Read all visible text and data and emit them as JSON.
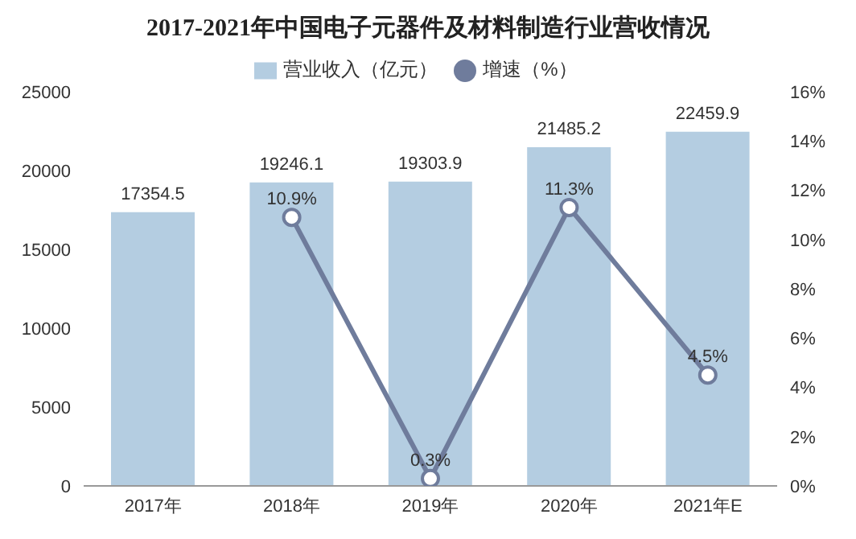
{
  "chart_data": {
    "type": "bar",
    "title": "2017-2021年中国电子元器件及材料制造行业营收情况",
    "categories": [
      "2017年",
      "2018年",
      "2019年",
      "2020年",
      "2021年E"
    ],
    "series": [
      {
        "name": "营业收入（亿元）",
        "color": "#b4cde1",
        "values": [
          17354.5,
          19246.1,
          19303.9,
          21485.2,
          22459.9
        ],
        "value_labels": [
          "17354.5",
          "19246.1",
          "19303.9",
          "21485.2",
          "22459.9"
        ]
      },
      {
        "name": "增速（%）",
        "type": "line",
        "axis": "y2",
        "color": "#6f7c9c",
        "values": [
          null,
          10.9,
          0.3,
          11.3,
          4.5
        ],
        "value_labels": [
          null,
          "10.9%",
          "0.3%",
          "11.3%",
          "4.5%"
        ]
      }
    ],
    "ylim": [
      0,
      25000
    ],
    "yticks": [
      0,
      5000,
      10000,
      15000,
      20000,
      25000
    ],
    "y2lim": [
      0,
      16
    ],
    "y2ticks": [
      {
        "value": 0,
        "label": "0%"
      },
      {
        "value": 2,
        "label": "2%"
      },
      {
        "value": 4,
        "label": "4%"
      },
      {
        "value": 6,
        "label": "6%"
      },
      {
        "value": 8,
        "label": "8%"
      },
      {
        "value": 10,
        "label": "10%"
      },
      {
        "value": 12,
        "label": "12%"
      },
      {
        "value": 14,
        "label": "14%"
      },
      {
        "value": 16,
        "label": "16%"
      }
    ],
    "legend": "top",
    "marker": "circle",
    "line_style": "solid"
  }
}
